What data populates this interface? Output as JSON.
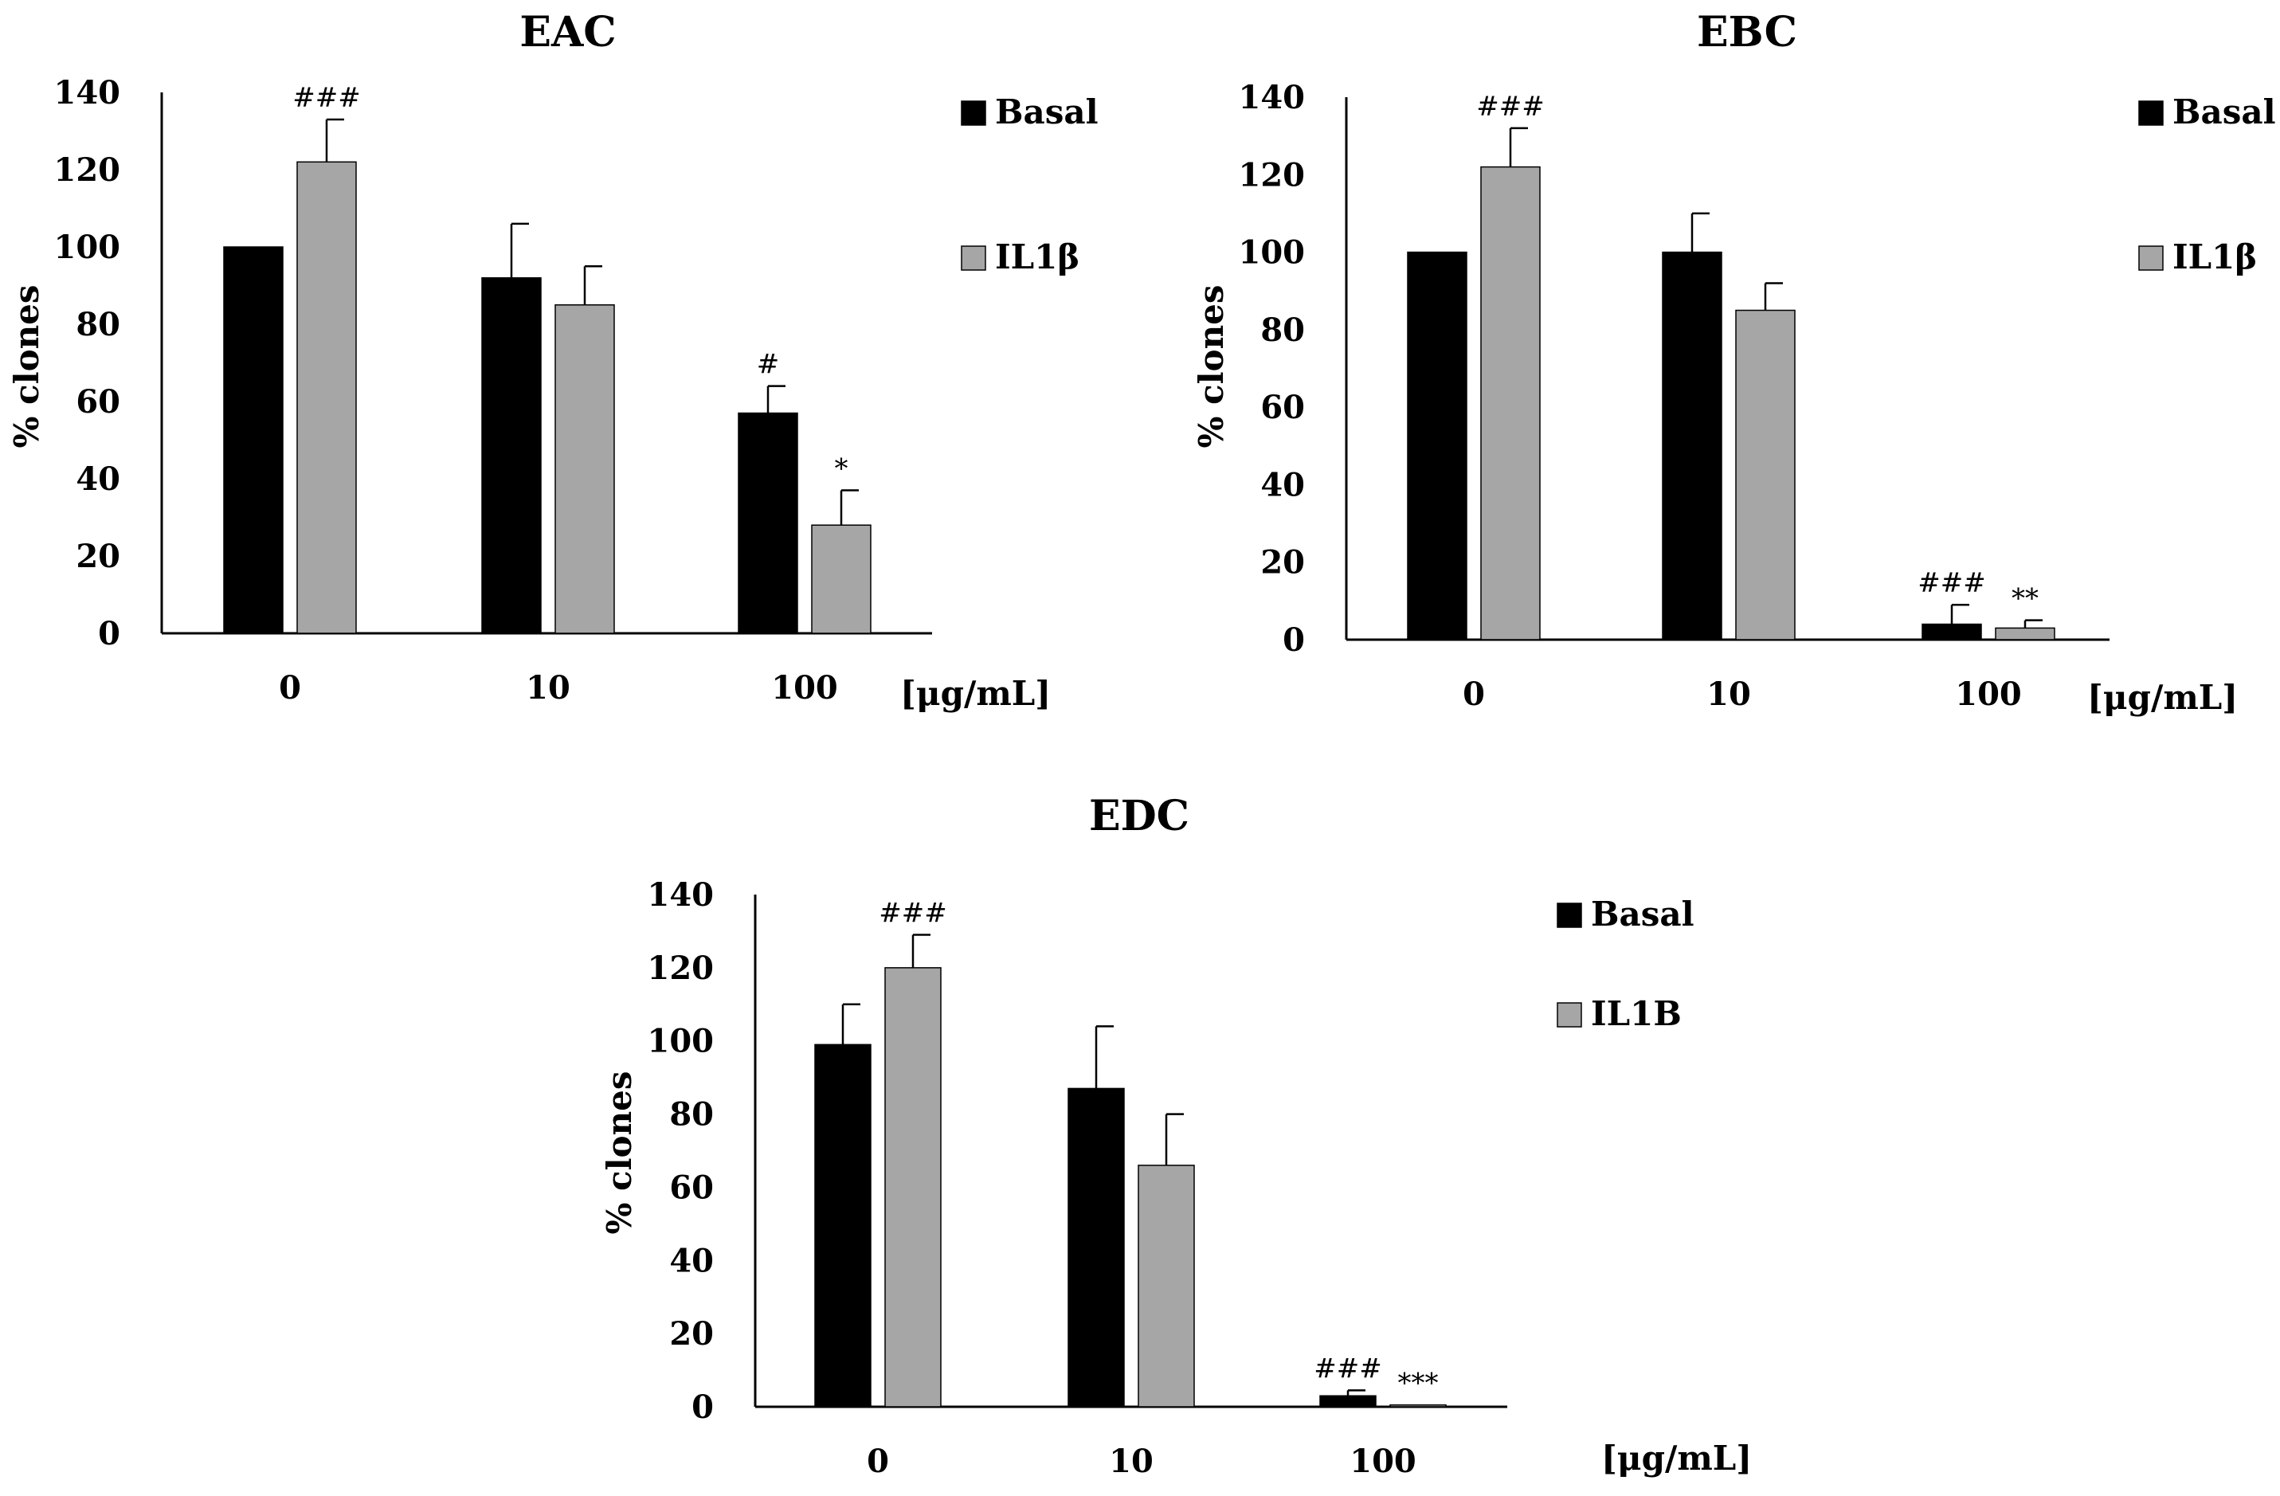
{
  "colors": {
    "basal": "#000000",
    "il1b": "#a6a6a6",
    "axis": "#000000"
  },
  "chart_data": [
    {
      "type": "bar",
      "title": "EAC",
      "ylabel": "% clones",
      "xunit": "[μg/mL]",
      "ylim": [
        0,
        140
      ],
      "yticks": [
        0,
        20,
        40,
        60,
        80,
        100,
        120,
        140
      ],
      "categories": [
        "0",
        "10",
        "100"
      ],
      "series": [
        {
          "name": "Basal",
          "color": "#000000",
          "values": [
            100,
            92,
            57
          ],
          "errors": [
            0,
            14,
            7
          ],
          "annotations": [
            "",
            "",
            "#"
          ]
        },
        {
          "name": "IL1β",
          "color": "#a6a6a6",
          "values": [
            122,
            85,
            28
          ],
          "errors": [
            11,
            10,
            9
          ],
          "annotations": [
            "###",
            "",
            "*"
          ]
        }
      ]
    },
    {
      "type": "bar",
      "title": "EBC",
      "ylabel": "% clones",
      "xunit": "[μg/mL]",
      "ylim": [
        0,
        140
      ],
      "yticks": [
        0,
        20,
        40,
        60,
        80,
        100,
        120,
        140
      ],
      "categories": [
        "0",
        "10",
        "100"
      ],
      "series": [
        {
          "name": "Basal",
          "color": "#000000",
          "values": [
            100,
            100,
            4
          ],
          "errors": [
            0,
            10,
            5
          ],
          "annotations": [
            "",
            "",
            "###"
          ]
        },
        {
          "name": "IL1β",
          "color": "#a6a6a6",
          "values": [
            122,
            85,
            3
          ],
          "errors": [
            10,
            7,
            2
          ],
          "annotations": [
            "###",
            "",
            "**"
          ]
        }
      ]
    },
    {
      "type": "bar",
      "title": "EDC",
      "ylabel": "% clones",
      "xunit": "[μg/mL]",
      "ylim": [
        0,
        140
      ],
      "yticks": [
        0,
        20,
        40,
        60,
        80,
        100,
        120,
        140
      ],
      "categories": [
        "0",
        "10",
        "100"
      ],
      "series": [
        {
          "name": "Basal",
          "color": "#000000",
          "values": [
            99,
            87,
            3
          ],
          "errors": [
            11,
            17,
            1.5
          ],
          "annotations": [
            "",
            "",
            "###"
          ]
        },
        {
          "name": "IL1B",
          "color": "#a6a6a6",
          "values": [
            120,
            66,
            0.5
          ],
          "errors": [
            9,
            14,
            0
          ],
          "annotations": [
            "###",
            "",
            "***"
          ]
        }
      ]
    }
  ]
}
